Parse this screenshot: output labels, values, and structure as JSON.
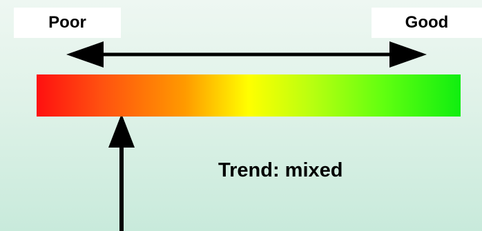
{
  "scale": {
    "low_label": "Poor",
    "high_label": "Good"
  },
  "trend": {
    "text": "Trend: mixed"
  },
  "indicator": {
    "position_fraction": 0.2
  }
}
